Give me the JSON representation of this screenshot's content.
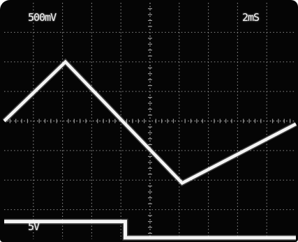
{
  "readouts": {
    "ch1_volts_per_div": "500mV",
    "timebase": "2mS",
    "ch2_volts_per_div": "5V"
  },
  "colors": {
    "screen_background": "#050505",
    "trace": "#f4f4f4",
    "graticule": "#9a9a9a"
  },
  "graticule": {
    "horizontal_divisions": 10,
    "vertical_divisions": 8,
    "subdivisions_per_division": 5
  },
  "traces": {
    "triangle_wave": {
      "points_div": [
        [
          0,
          4.0
        ],
        [
          2.1,
          6.0
        ],
        [
          6.1,
          1.9
        ],
        [
          10,
          3.9
        ]
      ]
    },
    "square_wave": {
      "points_div": [
        [
          0,
          0.6
        ],
        [
          4.15,
          0.6
        ],
        [
          4.15,
          0.05
        ],
        [
          10,
          0.05
        ]
      ]
    }
  }
}
